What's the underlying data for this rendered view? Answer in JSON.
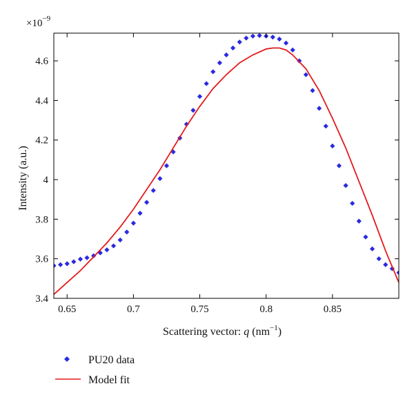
{
  "chart_data": {
    "type": "scatter",
    "xlabel_prefix": "Scattering vector: ",
    "xlabel_var": "q",
    "xlabel_unit_open": " (nm",
    "xlabel_unit_exp": "−1",
    "xlabel_unit_close": ")",
    "ylabel": "Intensity (a.u.)",
    "y_multiplier_base": "×10",
    "y_multiplier_exp": "−9",
    "xlim": [
      0.64,
      0.9
    ],
    "ylim": [
      3.4,
      4.74
    ],
    "x_ticks": [
      0.65,
      0.7,
      0.75,
      0.8,
      0.85
    ],
    "x_tick_labels": [
      "0.65",
      "0.7",
      "0.75",
      "0.8",
      "0.85"
    ],
    "y_ticks": [
      3.4,
      3.6,
      3.8,
      4.0,
      4.2,
      4.4,
      4.6
    ],
    "y_tick_labels": [
      "3.4",
      "3.6",
      "3.8",
      "4",
      "4.2",
      "4.4",
      "4.6"
    ],
    "grid": false,
    "legend_position": "below",
    "series": [
      {
        "name": "PU20 data",
        "style": "markers",
        "marker": "diamond",
        "color": "#2a2ae0",
        "x": [
          0.64,
          0.645,
          0.65,
          0.655,
          0.66,
          0.665,
          0.67,
          0.675,
          0.68,
          0.685,
          0.69,
          0.695,
          0.7,
          0.705,
          0.71,
          0.715,
          0.72,
          0.725,
          0.73,
          0.735,
          0.74,
          0.745,
          0.75,
          0.755,
          0.76,
          0.765,
          0.77,
          0.775,
          0.78,
          0.785,
          0.79,
          0.795,
          0.8,
          0.805,
          0.81,
          0.815,
          0.82,
          0.825,
          0.83,
          0.835,
          0.84,
          0.845,
          0.85,
          0.855,
          0.86,
          0.865,
          0.87,
          0.875,
          0.88,
          0.885,
          0.89,
          0.895,
          0.9
        ],
        "y": [
          3.565,
          3.57,
          3.575,
          3.585,
          3.598,
          3.605,
          3.615,
          3.63,
          3.645,
          3.665,
          3.695,
          3.735,
          3.78,
          3.83,
          3.885,
          3.945,
          4.005,
          4.07,
          4.14,
          4.21,
          4.28,
          4.35,
          4.42,
          4.485,
          4.545,
          4.59,
          4.63,
          4.665,
          4.695,
          4.715,
          4.725,
          4.728,
          4.725,
          4.72,
          4.71,
          4.69,
          4.655,
          4.6,
          4.53,
          4.45,
          4.36,
          4.27,
          4.17,
          4.07,
          3.97,
          3.88,
          3.79,
          3.71,
          3.65,
          3.6,
          3.57,
          3.55,
          3.53
        ]
      },
      {
        "name": "Model fit",
        "style": "line",
        "color": "#e41a1c",
        "x": [
          0.64,
          0.65,
          0.66,
          0.67,
          0.68,
          0.69,
          0.7,
          0.71,
          0.72,
          0.73,
          0.74,
          0.75,
          0.76,
          0.77,
          0.78,
          0.79,
          0.8,
          0.805,
          0.81,
          0.815,
          0.82,
          0.83,
          0.84,
          0.85,
          0.86,
          0.87,
          0.88,
          0.89,
          0.9
        ],
        "y": [
          3.42,
          3.48,
          3.54,
          3.61,
          3.68,
          3.76,
          3.85,
          3.95,
          4.05,
          4.16,
          4.27,
          4.37,
          4.46,
          4.53,
          4.59,
          4.63,
          4.66,
          4.665,
          4.665,
          4.655,
          4.63,
          4.56,
          4.45,
          4.31,
          4.16,
          3.99,
          3.82,
          3.64,
          3.48
        ]
      }
    ]
  }
}
